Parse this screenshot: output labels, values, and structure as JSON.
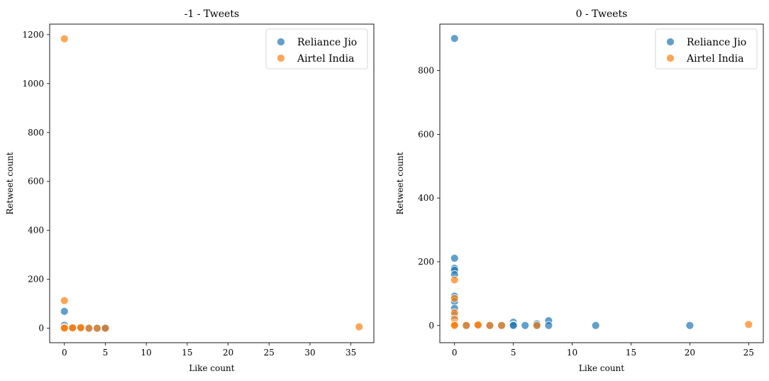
{
  "colors": {
    "Reliance Jio": "#1f77b4",
    "Airtel India": "#ff7f0e"
  },
  "chart_data": [
    {
      "type": "scatter",
      "title": "-1 - Tweets",
      "xlabel": "Like count",
      "ylabel": "Retweet count",
      "xlim": [
        -1.8,
        37.8
      ],
      "ylim": [
        -59,
        1243
      ],
      "xticks": [
        0,
        5,
        10,
        15,
        20,
        25,
        30,
        35
      ],
      "yticks": [
        0,
        200,
        400,
        600,
        800,
        1000,
        1200
      ],
      "legend_position": "top-right",
      "grid": false,
      "series": [
        {
          "name": "Reliance Jio",
          "points": [
            [
              0,
              69
            ],
            [
              0,
              12
            ],
            [
              0,
              3
            ],
            [
              0,
              0
            ],
            [
              1,
              0
            ],
            [
              1,
              2
            ],
            [
              2,
              1
            ],
            [
              2,
              0
            ],
            [
              3,
              0
            ],
            [
              4,
              0
            ],
            [
              5,
              0
            ],
            [
              5,
              2
            ]
          ]
        },
        {
          "name": "Airtel India",
          "points": [
            [
              0,
              1183
            ],
            [
              0,
              113
            ],
            [
              0,
              3
            ],
            [
              0,
              0
            ],
            [
              0,
              1
            ],
            [
              1,
              0
            ],
            [
              1,
              2
            ],
            [
              2,
              0
            ],
            [
              2,
              3
            ],
            [
              3,
              0
            ],
            [
              4,
              0
            ],
            [
              5,
              0
            ],
            [
              36,
              6
            ]
          ]
        }
      ]
    },
    {
      "type": "scatter",
      "title": "0 - Tweets",
      "xlabel": "Like count",
      "ylabel": "Retweet count",
      "xlim": [
        -1.25,
        26.25
      ],
      "ylim": [
        -54,
        946
      ],
      "xticks": [
        0,
        5,
        10,
        15,
        20,
        25
      ],
      "yticks": [
        0,
        200,
        400,
        600,
        800
      ],
      "legend_position": "top-right",
      "grid": false,
      "series": [
        {
          "name": "Reliance Jio",
          "points": [
            [
              0,
              901
            ],
            [
              0,
              211
            ],
            [
              0,
              180
            ],
            [
              0,
              174
            ],
            [
              0,
              160
            ],
            [
              0,
              92
            ],
            [
              0,
              75
            ],
            [
              0,
              54
            ],
            [
              0,
              32
            ],
            [
              0,
              15
            ],
            [
              0,
              6
            ],
            [
              0,
              2
            ],
            [
              1,
              0
            ],
            [
              2,
              0
            ],
            [
              3,
              0
            ],
            [
              4,
              0
            ],
            [
              5,
              10
            ],
            [
              5,
              2
            ],
            [
              5,
              0
            ],
            [
              6,
              0
            ],
            [
              7,
              5
            ],
            [
              7,
              0
            ],
            [
              8,
              15
            ],
            [
              8,
              0
            ],
            [
              12,
              0
            ],
            [
              20,
              0
            ]
          ]
        },
        {
          "name": "Airtel India",
          "points": [
            [
              0,
              143
            ],
            [
              0,
              85
            ],
            [
              0,
              40
            ],
            [
              0,
              20
            ],
            [
              0,
              8
            ],
            [
              0,
              3
            ],
            [
              0,
              0
            ],
            [
              1,
              0
            ],
            [
              2,
              0
            ],
            [
              2,
              2
            ],
            [
              3,
              0
            ],
            [
              4,
              0
            ],
            [
              7,
              0
            ],
            [
              25,
              3
            ]
          ]
        }
      ]
    }
  ]
}
